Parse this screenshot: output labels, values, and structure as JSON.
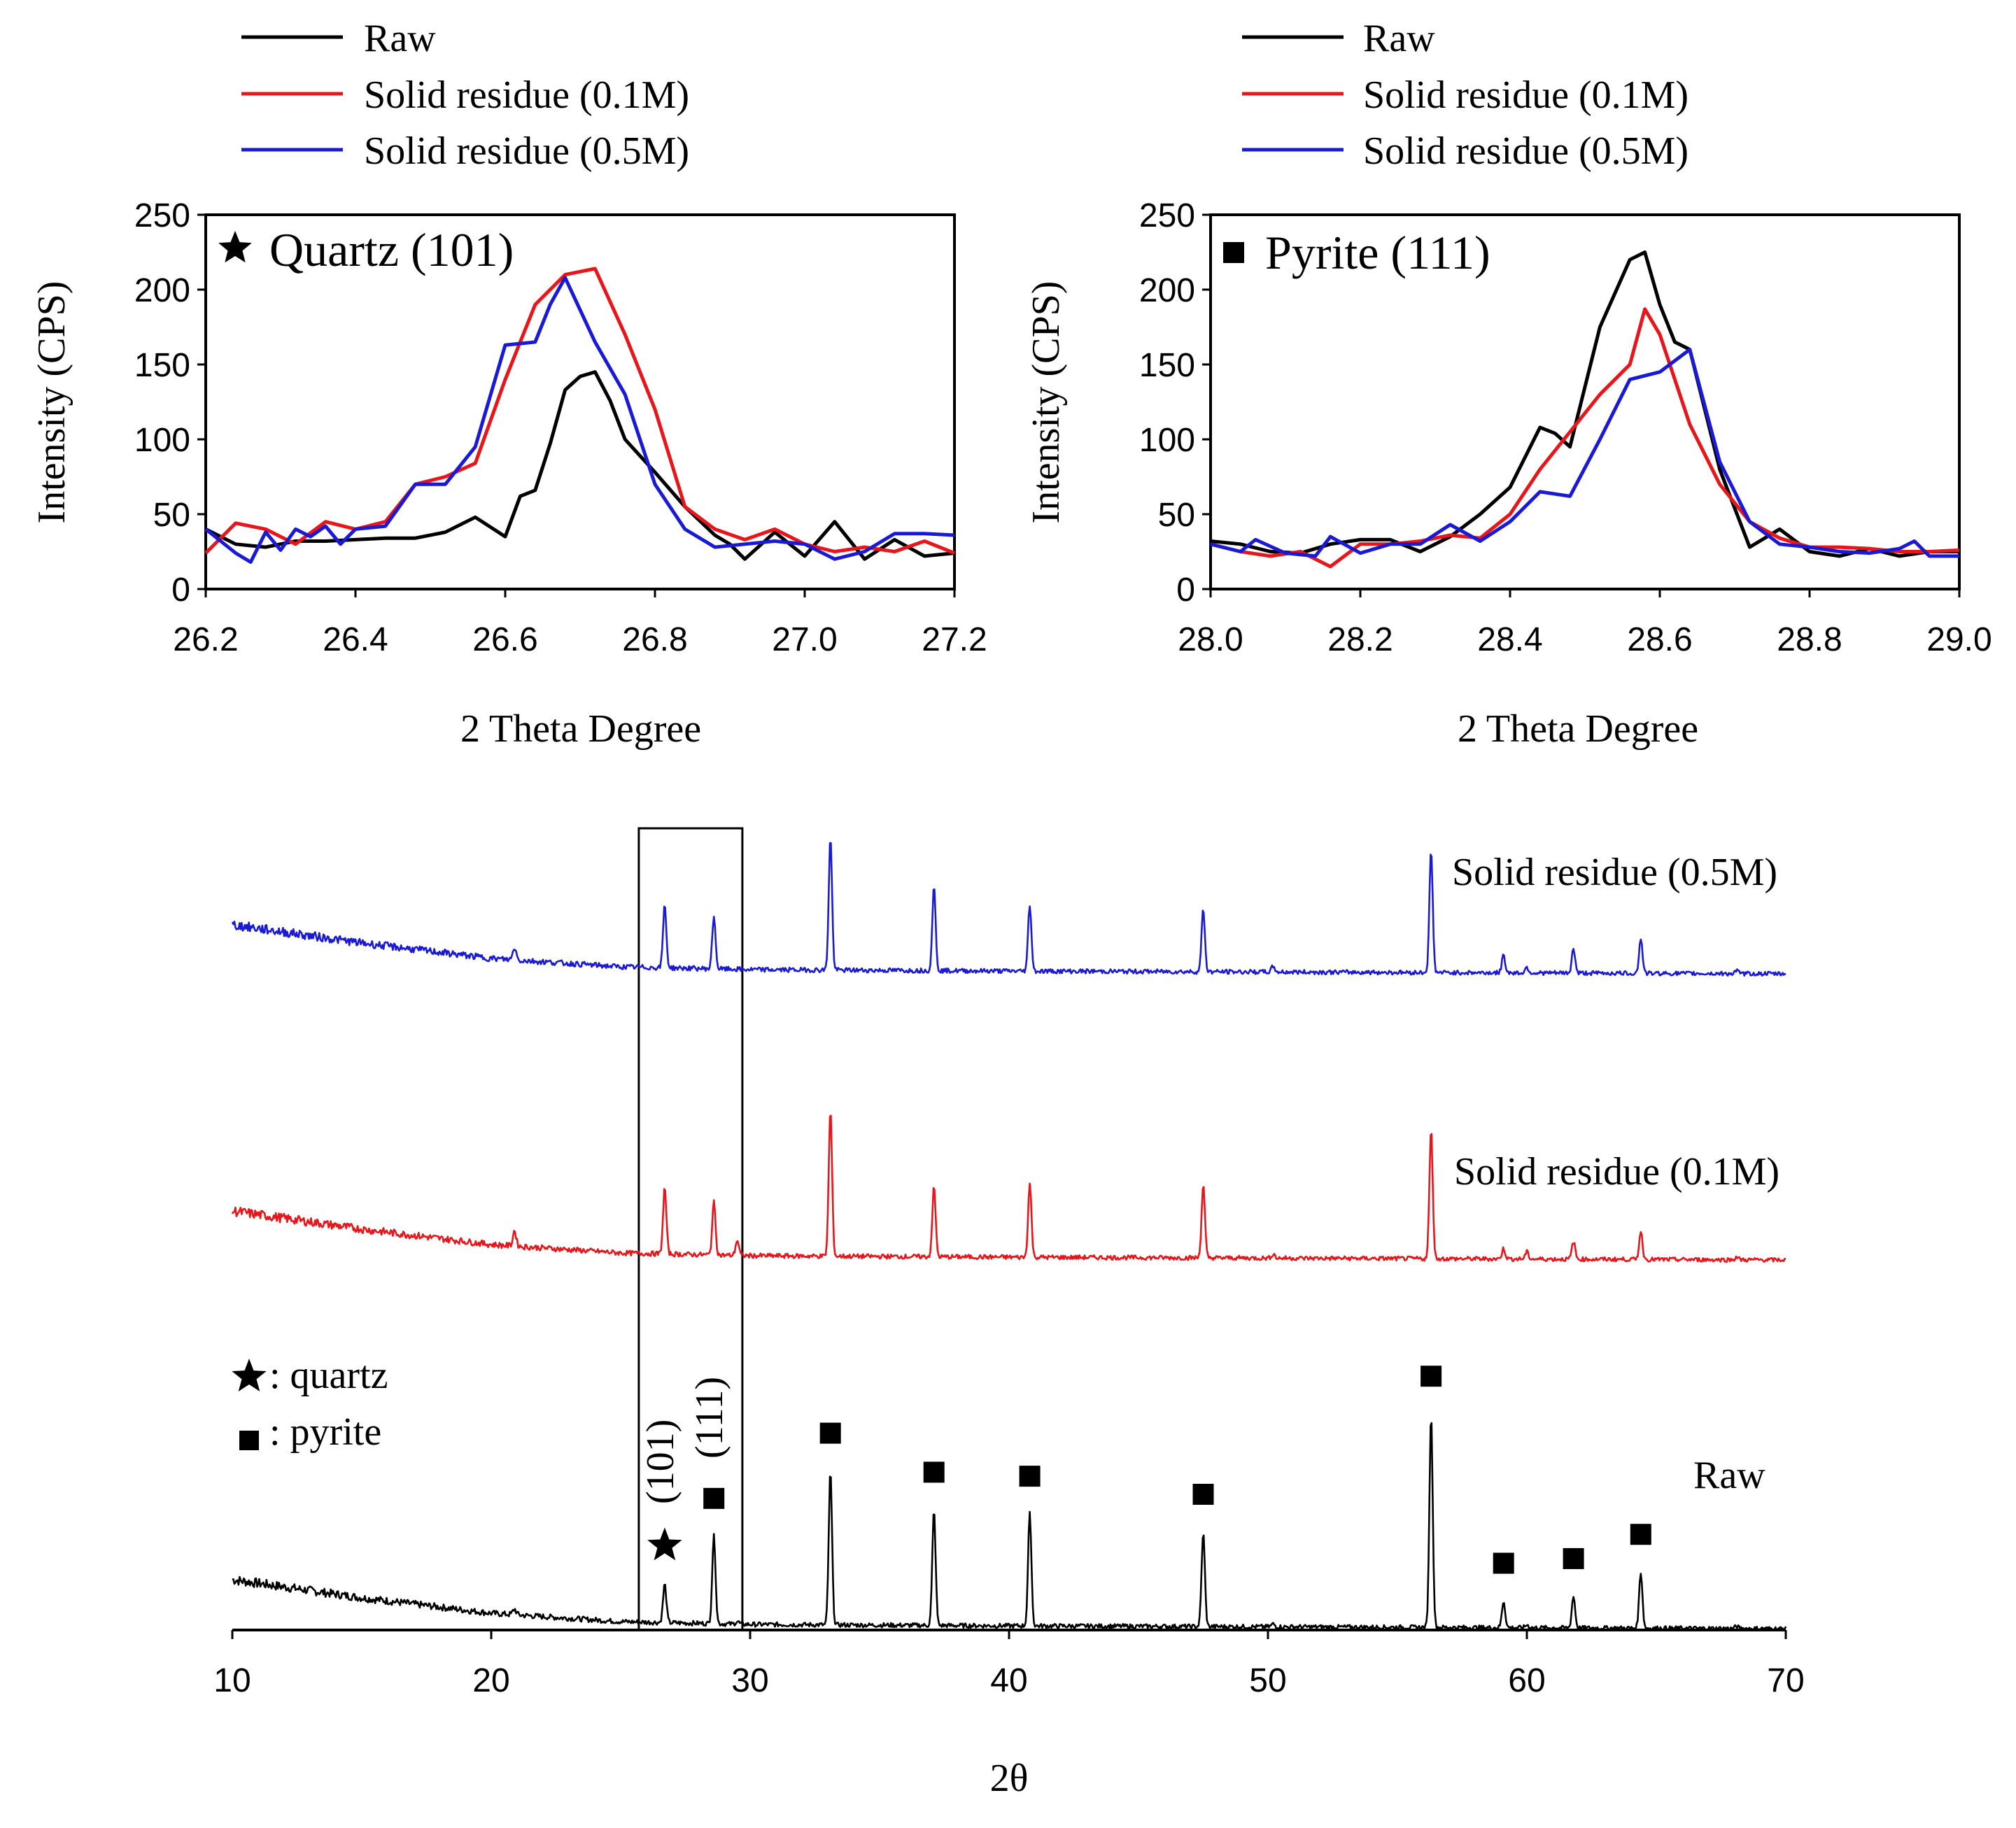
{
  "chart_data": [
    {
      "type": "line",
      "panel": "quartz-inset",
      "annotation": "Quartz (101)",
      "annotation_symbol": "star",
      "xlabel": "2 Theta Degree",
      "ylabel": "Intensity (CPS)",
      "xlim": [
        26.2,
        27.2
      ],
      "ylim": [
        0,
        250
      ],
      "xticks": [
        26.2,
        26.4,
        26.6,
        26.8,
        27.0,
        27.2
      ],
      "xtick_labels": [
        "26.2",
        "26.4",
        "26.6",
        "26.8",
        "27.0",
        "27.2"
      ],
      "yticks": [
        0,
        50,
        100,
        150,
        200,
        250
      ],
      "ytick_labels": [
        "0",
        "50",
        "100",
        "150",
        "200",
        "250"
      ],
      "legend_position": "above",
      "series": [
        {
          "name": "Raw",
          "color": "#000000",
          "x": [
            26.2,
            26.24,
            26.28,
            26.32,
            26.36,
            26.4,
            26.44,
            26.48,
            26.52,
            26.56,
            26.6,
            26.62,
            26.64,
            26.66,
            26.68,
            26.7,
            26.72,
            26.74,
            26.76,
            26.8,
            26.84,
            26.88,
            26.9,
            26.92,
            26.96,
            27.0,
            27.04,
            27.08,
            27.12,
            27.16,
            27.2
          ],
          "y": [
            40,
            30,
            28,
            32,
            32,
            33,
            34,
            34,
            38,
            48,
            35,
            62,
            66,
            97,
            133,
            142,
            145,
            126,
            100,
            78,
            55,
            36,
            30,
            20,
            38,
            22,
            45,
            20,
            33,
            22,
            24
          ]
        },
        {
          "name": "Solid residue (0.1M)",
          "color": "#e8161b",
          "x": [
            26.2,
            26.24,
            26.28,
            26.32,
            26.36,
            26.4,
            26.44,
            26.48,
            26.52,
            26.56,
            26.6,
            26.64,
            26.68,
            26.72,
            26.76,
            26.8,
            26.84,
            26.88,
            26.92,
            26.96,
            27.0,
            27.04,
            27.08,
            27.12,
            27.16,
            27.2
          ],
          "y": [
            24,
            44,
            40,
            30,
            45,
            40,
            45,
            70,
            75,
            84,
            140,
            190,
            210,
            214,
            170,
            120,
            55,
            40,
            33,
            40,
            30,
            25,
            28,
            25,
            32,
            24
          ]
        },
        {
          "name": "Solid residue (0.5M)",
          "color": "#1a1ad6",
          "x": [
            26.2,
            26.24,
            26.26,
            26.28,
            26.3,
            26.32,
            26.34,
            26.36,
            26.38,
            26.4,
            26.44,
            26.48,
            26.52,
            26.56,
            26.6,
            26.64,
            26.66,
            26.68,
            26.72,
            26.76,
            26.8,
            26.84,
            26.88,
            26.92,
            26.96,
            27.0,
            27.04,
            27.08,
            27.12,
            27.16,
            27.2
          ],
          "y": [
            40,
            24,
            18,
            38,
            26,
            40,
            35,
            42,
            30,
            40,
            42,
            70,
            70,
            95,
            163,
            165,
            190,
            208,
            165,
            130,
            70,
            40,
            28,
            30,
            32,
            30,
            20,
            25,
            37,
            37,
            36
          ]
        }
      ]
    },
    {
      "type": "line",
      "panel": "pyrite-inset",
      "annotation": "Pyrite (111)",
      "annotation_symbol": "square",
      "xlabel": "2 Theta Degree",
      "ylabel": "Intensity (CPS)",
      "xlim": [
        28.0,
        29.0
      ],
      "ylim": [
        0,
        250
      ],
      "xticks": [
        28.0,
        28.2,
        28.4,
        28.6,
        28.8,
        29.0
      ],
      "xtick_labels": [
        "28.0",
        "28.2",
        "28.4",
        "28.6",
        "28.8",
        "29.0"
      ],
      "yticks": [
        0,
        50,
        100,
        150,
        200,
        250
      ],
      "ytick_labels": [
        "0",
        "50",
        "100",
        "150",
        "200",
        "250"
      ],
      "legend_position": "above",
      "series": [
        {
          "name": "Raw",
          "color": "#000000",
          "x": [
            28.0,
            28.04,
            28.08,
            28.12,
            28.16,
            28.2,
            28.24,
            28.28,
            28.32,
            28.36,
            28.4,
            28.44,
            28.46,
            28.48,
            28.52,
            28.56,
            28.58,
            28.6,
            28.62,
            28.64,
            28.68,
            28.72,
            28.76,
            28.8,
            28.84,
            28.88,
            28.92,
            28.96,
            29.0
          ],
          "y": [
            32,
            30,
            25,
            24,
            30,
            33,
            33,
            25,
            35,
            50,
            68,
            108,
            104,
            95,
            175,
            220,
            225,
            190,
            165,
            160,
            80,
            28,
            40,
            25,
            22,
            27,
            22,
            25,
            25
          ]
        },
        {
          "name": "Solid residue (0.1M)",
          "color": "#e8161b",
          "x": [
            28.0,
            28.04,
            28.08,
            28.12,
            28.16,
            28.2,
            28.24,
            28.28,
            28.32,
            28.36,
            28.4,
            28.44,
            28.48,
            28.52,
            28.56,
            28.58,
            28.6,
            28.64,
            28.68,
            28.72,
            28.76,
            28.8,
            28.84,
            28.88,
            28.92,
            28.96,
            29.0
          ],
          "y": [
            30,
            25,
            22,
            25,
            15,
            30,
            30,
            32,
            36,
            34,
            50,
            80,
            105,
            130,
            150,
            187,
            170,
            110,
            70,
            45,
            34,
            28,
            28,
            27,
            25,
            25,
            26
          ]
        },
        {
          "name": "Solid residue (0.5M)",
          "color": "#1a1ad6",
          "x": [
            28.0,
            28.04,
            28.06,
            28.1,
            28.14,
            28.16,
            28.2,
            28.24,
            28.28,
            28.32,
            28.36,
            28.4,
            28.44,
            28.48,
            28.52,
            28.56,
            28.6,
            28.64,
            28.68,
            28.72,
            28.76,
            28.8,
            28.84,
            28.88,
            28.92,
            28.94,
            28.96,
            29.0
          ],
          "y": [
            30,
            25,
            33,
            24,
            22,
            35,
            24,
            30,
            30,
            43,
            32,
            45,
            65,
            62,
            100,
            140,
            145,
            160,
            85,
            45,
            30,
            28,
            25,
            24,
            27,
            32,
            22,
            22
          ]
        }
      ]
    },
    {
      "type": "line",
      "panel": "full-pattern",
      "xlabel": "2θ",
      "xlim": [
        10,
        70
      ],
      "xticks": [
        10,
        20,
        30,
        40,
        50,
        60,
        70
      ],
      "xtick_labels": [
        "10",
        "20",
        "30",
        "40",
        "50",
        "60",
        "70"
      ],
      "highlight_box_x": [
        25.7,
        29.7
      ],
      "legend": [
        {
          "symbol": "star",
          "label": ": quartz"
        },
        {
          "symbol": "square",
          "label": ": pyrite"
        }
      ],
      "peak_labels": [
        {
          "text": "(101)",
          "x": 26.7
        },
        {
          "text": "(111)",
          "x": 28.6
        }
      ],
      "marked_peaks": [
        {
          "phase": "quartz",
          "x": 26.7
        },
        {
          "phase": "pyrite",
          "x": 28.6
        },
        {
          "phase": "pyrite",
          "x": 33.1
        },
        {
          "phase": "pyrite",
          "x": 37.1
        },
        {
          "phase": "pyrite",
          "x": 40.8
        },
        {
          "phase": "pyrite",
          "x": 47.5
        },
        {
          "phase": "pyrite",
          "x": 56.3
        },
        {
          "phase": "pyrite",
          "x": 59.1
        },
        {
          "phase": "pyrite",
          "x": 61.8
        },
        {
          "phase": "pyrite",
          "x": 64.4
        }
      ],
      "background_points": [
        [
          10,
          70
        ],
        [
          15,
          44
        ],
        [
          20,
          22
        ],
        [
          25,
          10
        ],
        [
          30,
          6
        ],
        [
          40,
          4
        ],
        [
          55,
          2
        ],
        [
          70,
          0
        ]
      ],
      "series": [
        {
          "name": "Raw",
          "color": "#000000",
          "peaks": [
            [
              20.9,
              8
            ],
            [
              26.7,
              55
            ],
            [
              28.6,
              125
            ],
            [
              29.5,
              4
            ],
            [
              33.1,
              220
            ],
            [
              37.1,
              165
            ],
            [
              40.8,
              160
            ],
            [
              47.5,
              135
            ],
            [
              50.2,
              4
            ],
            [
              56.3,
              305
            ],
            [
              59.1,
              38
            ],
            [
              60.0,
              4
            ],
            [
              61.8,
              45
            ],
            [
              64.4,
              80
            ],
            [
              68.1,
              3
            ]
          ]
        },
        {
          "name": "Solid residue (0.1M)",
          "color": "#e8161b",
          "peaks": [
            [
              20.9,
              22
            ],
            [
              26.7,
              95
            ],
            [
              28.6,
              75
            ],
            [
              29.5,
              22
            ],
            [
              33.1,
              210
            ],
            [
              37.1,
              100
            ],
            [
              40.8,
              105
            ],
            [
              47.5,
              105
            ],
            [
              50.2,
              6
            ],
            [
              56.3,
              185
            ],
            [
              59.1,
              15
            ],
            [
              60.0,
              10
            ],
            [
              61.8,
              25
            ],
            [
              64.4,
              40
            ],
            [
              68.1,
              4
            ]
          ]
        },
        {
          "name": "Solid residue (0.5M)",
          "color": "#1a1ad6",
          "peaks": [
            [
              20.9,
              18
            ],
            [
              26.7,
              90
            ],
            [
              28.6,
              75
            ],
            [
              33.1,
              190
            ],
            [
              37.1,
              120
            ],
            [
              40.8,
              95
            ],
            [
              47.5,
              90
            ],
            [
              50.2,
              8
            ],
            [
              56.3,
              175
            ],
            [
              59.1,
              25
            ],
            [
              60.0,
              8
            ],
            [
              61.8,
              35
            ],
            [
              64.4,
              50
            ],
            [
              68.1,
              4
            ]
          ]
        }
      ]
    }
  ]
}
